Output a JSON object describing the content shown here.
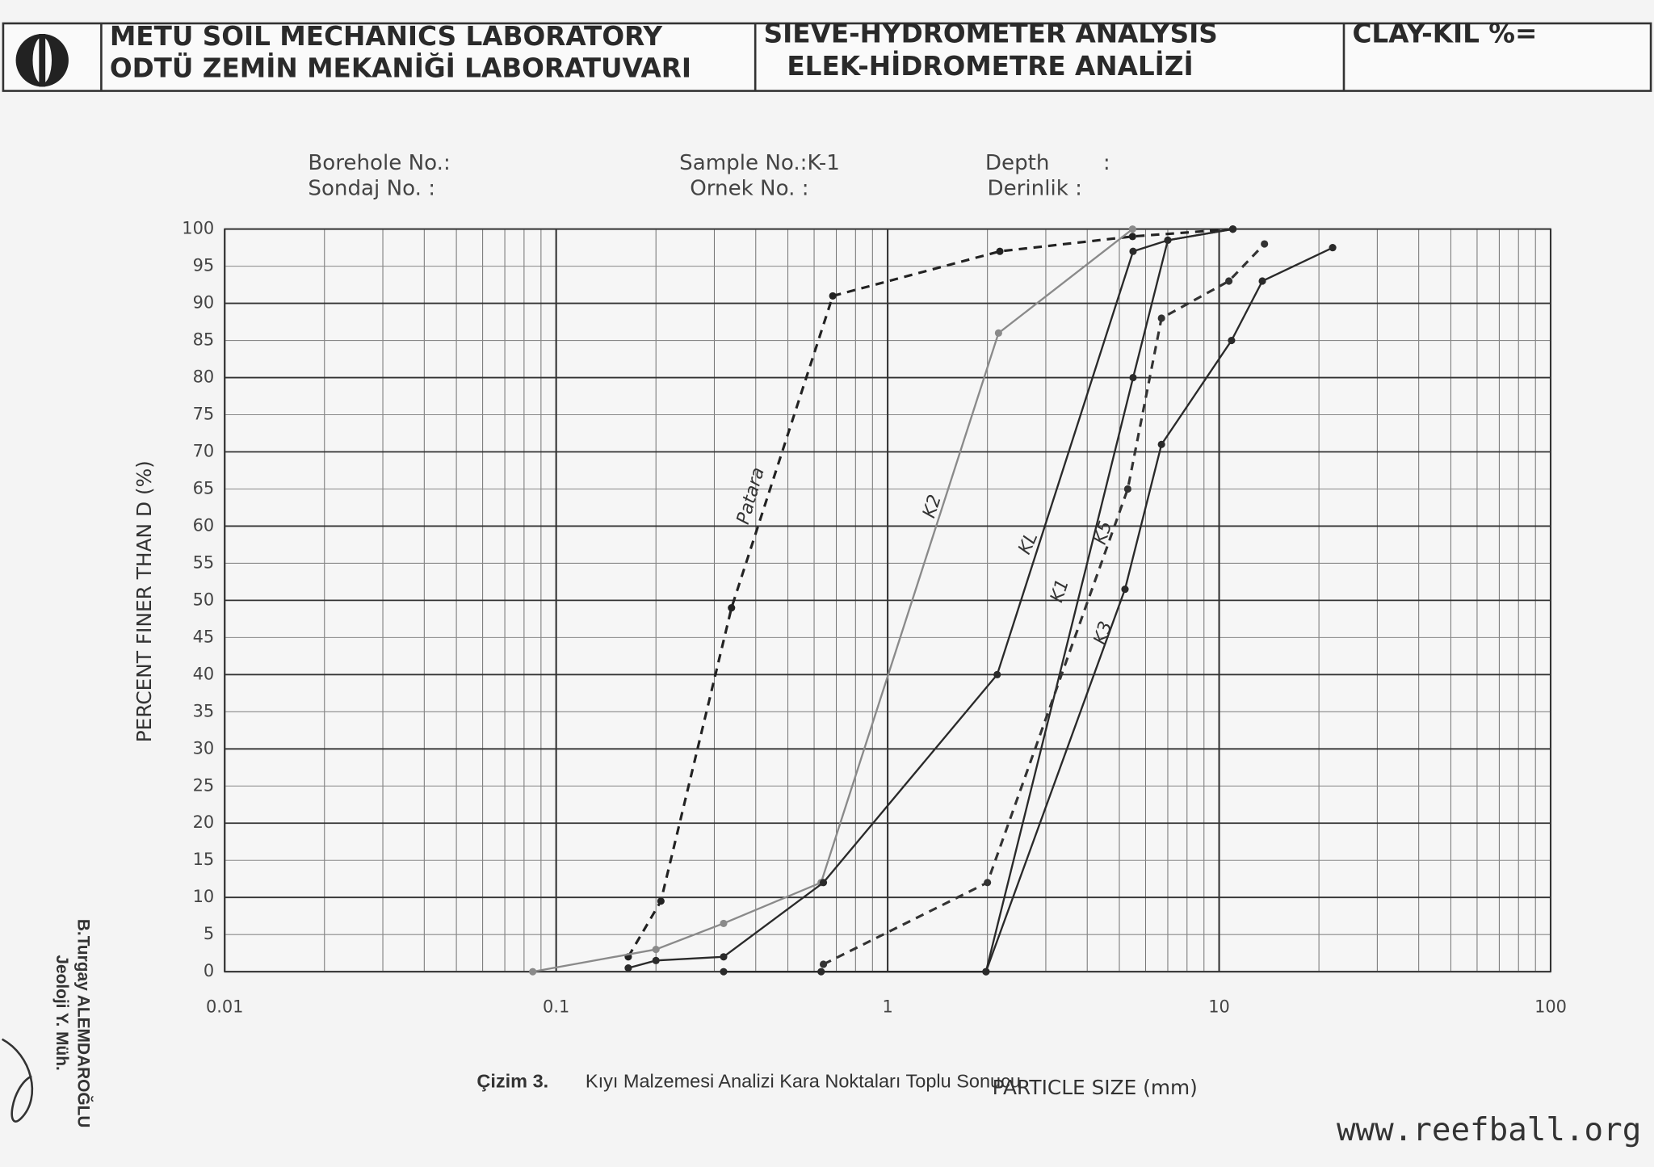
{
  "header": {
    "lab_en": "METU SOIL MECHANICS LABORATORY",
    "lab_tr": "ODTÜ ZEMİN MEKANİĞİ LABORATUVARI",
    "analysis_en": "SIEVE-HYDROMETER ANALYSIS",
    "analysis_tr": "ELEK-HİDROMETRE ANALİZİ",
    "clay": "CLAY-KIL %="
  },
  "info": {
    "borehole_en": "Borehole No.:",
    "borehole_tr": "Sondaj No.   :",
    "sample_en": "Sample No.:K-1",
    "sample_tr": "Ornek No. :",
    "depth_en": "Depth        :",
    "depth_tr": "Derinlik  :"
  },
  "chart_data": {
    "type": "line",
    "xlabel": "PARTICLE SIZE (mm)",
    "ylabel": "PERCENT FINER THAN D (%)",
    "xscale": "log",
    "xlim": [
      0.01,
      100
    ],
    "xticks": [
      0.01,
      0.1,
      1,
      10,
      100
    ],
    "ylim": [
      0,
      100
    ],
    "yticks": [
      0,
      5,
      10,
      15,
      20,
      25,
      30,
      35,
      40,
      45,
      50,
      55,
      60,
      65,
      70,
      75,
      80,
      85,
      90,
      95,
      100
    ],
    "grid": true,
    "series": [
      {
        "name": "Patara",
        "color": "#222222",
        "dashed": true,
        "x": [
          0.165,
          0.207,
          0.338,
          0.683,
          2.18,
          5.48,
          11
        ],
        "values": [
          2,
          9.5,
          49,
          91,
          97,
          99,
          100
        ]
      },
      {
        "name": "K2",
        "color": "#8a8a8a",
        "dashed": false,
        "x": [
          0.085,
          0.2,
          0.32,
          0.63,
          2.16,
          5.48
        ],
        "values": [
          0,
          3,
          6.5,
          12,
          86,
          100
        ]
      },
      {
        "name": "KL",
        "color": "#2a2a2a",
        "dashed": false,
        "x": [
          0.165,
          0.2,
          0.32,
          0.64,
          2.14,
          5.5,
          7,
          11
        ],
        "values": [
          0.5,
          1.5,
          2,
          12,
          40,
          97,
          98.5,
          100
        ]
      },
      {
        "name": "K1",
        "color": "#2a2a2a",
        "dashed": false,
        "x": [
          0.32,
          0.63,
          1.98,
          5.5,
          7,
          11
        ],
        "values": [
          0,
          0,
          0,
          80,
          98.5,
          100
        ]
      },
      {
        "name": "K5",
        "color": "#333333",
        "dashed": true,
        "x": [
          0.64,
          2.0,
          5.3,
          6.7,
          10.7,
          13.7
        ],
        "values": [
          1,
          12,
          65,
          88,
          93,
          98
        ]
      },
      {
        "name": "K3",
        "color": "#2a2a2a",
        "dashed": false,
        "x": [
          1.98,
          5.2,
          6.7,
          10.9,
          13.5,
          22
        ],
        "values": [
          0,
          51.5,
          71,
          85,
          93,
          97.5
        ]
      }
    ]
  },
  "caption": {
    "number": "Çizim 3.",
    "text": "Kıyı Malzemesi Analizi Kara Noktaları Toplu Sonucu"
  },
  "signature": {
    "name": "B.Turgay ALEMDAROĞLU",
    "title": "Jeoloji Y. Müh."
  },
  "watermark": "www.reefball.org"
}
